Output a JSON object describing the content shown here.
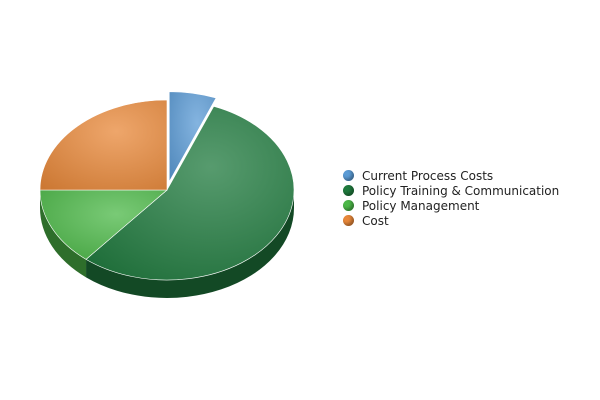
{
  "chart_data": {
    "type": "pie",
    "legend_position": "right",
    "slices": [
      {
        "label": "Current Process Costs",
        "value": 6,
        "color": "#5b9bd5",
        "exploded": true
      },
      {
        "label": "Policy Training & Communication",
        "value": 55,
        "color": "#1f7a3d",
        "exploded": false
      },
      {
        "label": "Policy Management",
        "value": 14,
        "color": "#4cb848",
        "exploded": false
      },
      {
        "label": "Cost",
        "value": 25,
        "color": "#e8883a",
        "exploded": false
      }
    ]
  }
}
